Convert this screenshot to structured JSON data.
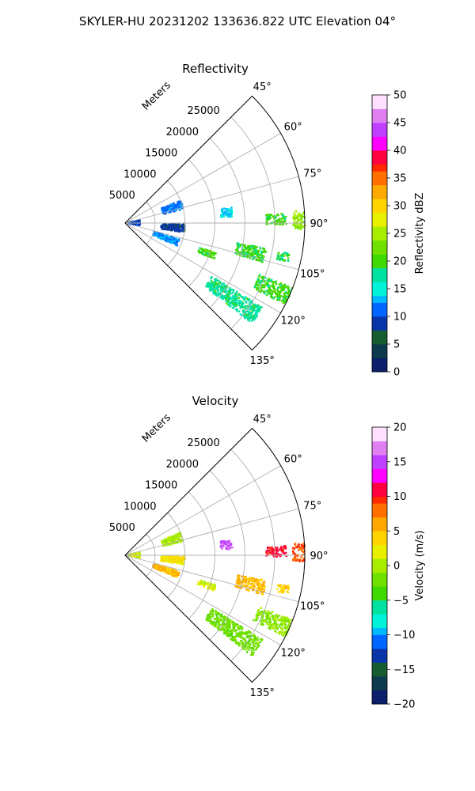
{
  "figure": {
    "suptitle": "SKYLER-HU  20231202  133636.822 UTC Elevation 04°"
  },
  "chart_data": [
    {
      "type": "heatmap",
      "title": "Reflectivity",
      "projection": "polar-sector",
      "radial_label": "Meters",
      "radial_ticks": [
        5000,
        10000,
        15000,
        20000,
        25000
      ],
      "radial_tick_labels": [
        "5000",
        "10000",
        "15000",
        "20000",
        "25000"
      ],
      "rmax": 30000,
      "azimuth_range": [
        45,
        135
      ],
      "azimuth_ticks": [
        45,
        60,
        75,
        90,
        105,
        120,
        135
      ],
      "azimuth_tick_labels": [
        "45°",
        "60°",
        "75°",
        "90°",
        "105°",
        "120°",
        "135°"
      ],
      "grid": true,
      "colorbar": {
        "label": "Reflectivity dBZ",
        "range": [
          0,
          50
        ],
        "ticks": [
          0,
          5,
          10,
          15,
          20,
          25,
          30,
          35,
          40,
          45,
          50
        ],
        "tick_labels": [
          "0",
          "5",
          "10",
          "15",
          "20",
          "25",
          "30",
          "35",
          "40",
          "45",
          "50"
        ]
      },
      "echoes": [
        {
          "az": 89,
          "r_min": 28000,
          "r_max": 30000,
          "width": 6,
          "value": 24
        },
        {
          "az": 88.5,
          "r_min": 23500,
          "r_max": 27000,
          "width": 4,
          "value": 20
        },
        {
          "az": 84,
          "r_min": 16000,
          "r_max": 18000,
          "width": 5,
          "value": 14
        },
        {
          "az": 103,
          "r_min": 19000,
          "r_max": 24000,
          "width": 6,
          "value": 20
        },
        {
          "az": 102,
          "r_min": 26000,
          "r_max": 28000,
          "width": 3,
          "value": 19
        },
        {
          "az": 114,
          "r_min": 24000,
          "r_max": 30000,
          "width": 6,
          "value": 20
        },
        {
          "az": 125,
          "r_min": 17000,
          "r_max": 27000,
          "width": 7,
          "value": 18
        },
        {
          "az": 110,
          "r_min": 13000,
          "r_max": 16000,
          "width": 4,
          "value": 20
        },
        {
          "az": 72,
          "r_min": 6500,
          "r_max": 10000,
          "width": 9,
          "value": 11
        },
        {
          "az": 110,
          "r_min": 5000,
          "r_max": 9500,
          "width": 7,
          "value": 12
        },
        {
          "az": 88,
          "r_min": 500,
          "r_max": 2500,
          "width": 22,
          "value": 9
        },
        {
          "az": 95,
          "r_min": 6000,
          "r_max": 10000,
          "width": 8,
          "value": 8
        }
      ]
    },
    {
      "type": "heatmap",
      "title": "Velocity",
      "projection": "polar-sector",
      "radial_label": "Meters",
      "radial_ticks": [
        5000,
        10000,
        15000,
        20000,
        25000
      ],
      "radial_tick_labels": [
        "5000",
        "10000",
        "15000",
        "20000",
        "25000"
      ],
      "rmax": 30000,
      "azimuth_range": [
        45,
        135
      ],
      "azimuth_ticks": [
        45,
        60,
        75,
        90,
        105,
        120,
        135
      ],
      "azimuth_tick_labels": [
        "45°",
        "60°",
        "75°",
        "90°",
        "105°",
        "120°",
        "135°"
      ],
      "grid": true,
      "colorbar": {
        "label": "Velocity (m/s)",
        "range": [
          -20,
          20
        ],
        "ticks": [
          -20,
          -15,
          -10,
          -5,
          0,
          5,
          10,
          15,
          20
        ],
        "tick_labels": [
          "−20",
          "−15",
          "−10",
          "−5",
          "0",
          "5",
          "10",
          "15",
          "20"
        ]
      },
      "echoes": [
        {
          "az": 89,
          "r_min": 28000,
          "r_max": 30000,
          "width": 6,
          "value": 9
        },
        {
          "az": 88.5,
          "r_min": 23500,
          "r_max": 27000,
          "width": 4,
          "value": 11
        },
        {
          "az": 84,
          "r_min": 16000,
          "r_max": 18000,
          "width": 5,
          "value": 16
        },
        {
          "az": 103,
          "r_min": 19000,
          "r_max": 24000,
          "width": 6,
          "value": 5
        },
        {
          "az": 102,
          "r_min": 26000,
          "r_max": 28000,
          "width": 3,
          "value": 4
        },
        {
          "az": 114,
          "r_min": 24000,
          "r_max": 30000,
          "width": 6,
          "value": -1
        },
        {
          "az": 125,
          "r_min": 17000,
          "r_max": 27000,
          "width": 7,
          "value": -2
        },
        {
          "az": 110,
          "r_min": 13000,
          "r_max": 16000,
          "width": 4,
          "value": 1
        },
        {
          "az": 72,
          "r_min": 6500,
          "r_max": 10000,
          "width": 9,
          "value": 0
        },
        {
          "az": 110,
          "r_min": 5000,
          "r_max": 9500,
          "width": 7,
          "value": 5
        },
        {
          "az": 88,
          "r_min": 500,
          "r_max": 2500,
          "width": 22,
          "value": 1
        },
        {
          "az": 95,
          "r_min": 6000,
          "r_max": 10000,
          "width": 8,
          "value": 3
        }
      ]
    }
  ],
  "colormap": [
    "#0b1f6b",
    "#0d3a4c",
    "#165c30",
    "#0a35a8",
    "#0066ff",
    "#00b8ff",
    "#00f2d8",
    "#00e0a0",
    "#3fd800",
    "#70e000",
    "#a8ec00",
    "#e8f000",
    "#ffd400",
    "#ffa800",
    "#ff7000",
    "#ff2a00",
    "#ff0040",
    "#ff00ff",
    "#c040ff",
    "#e080f0",
    "#ffe0ff"
  ]
}
